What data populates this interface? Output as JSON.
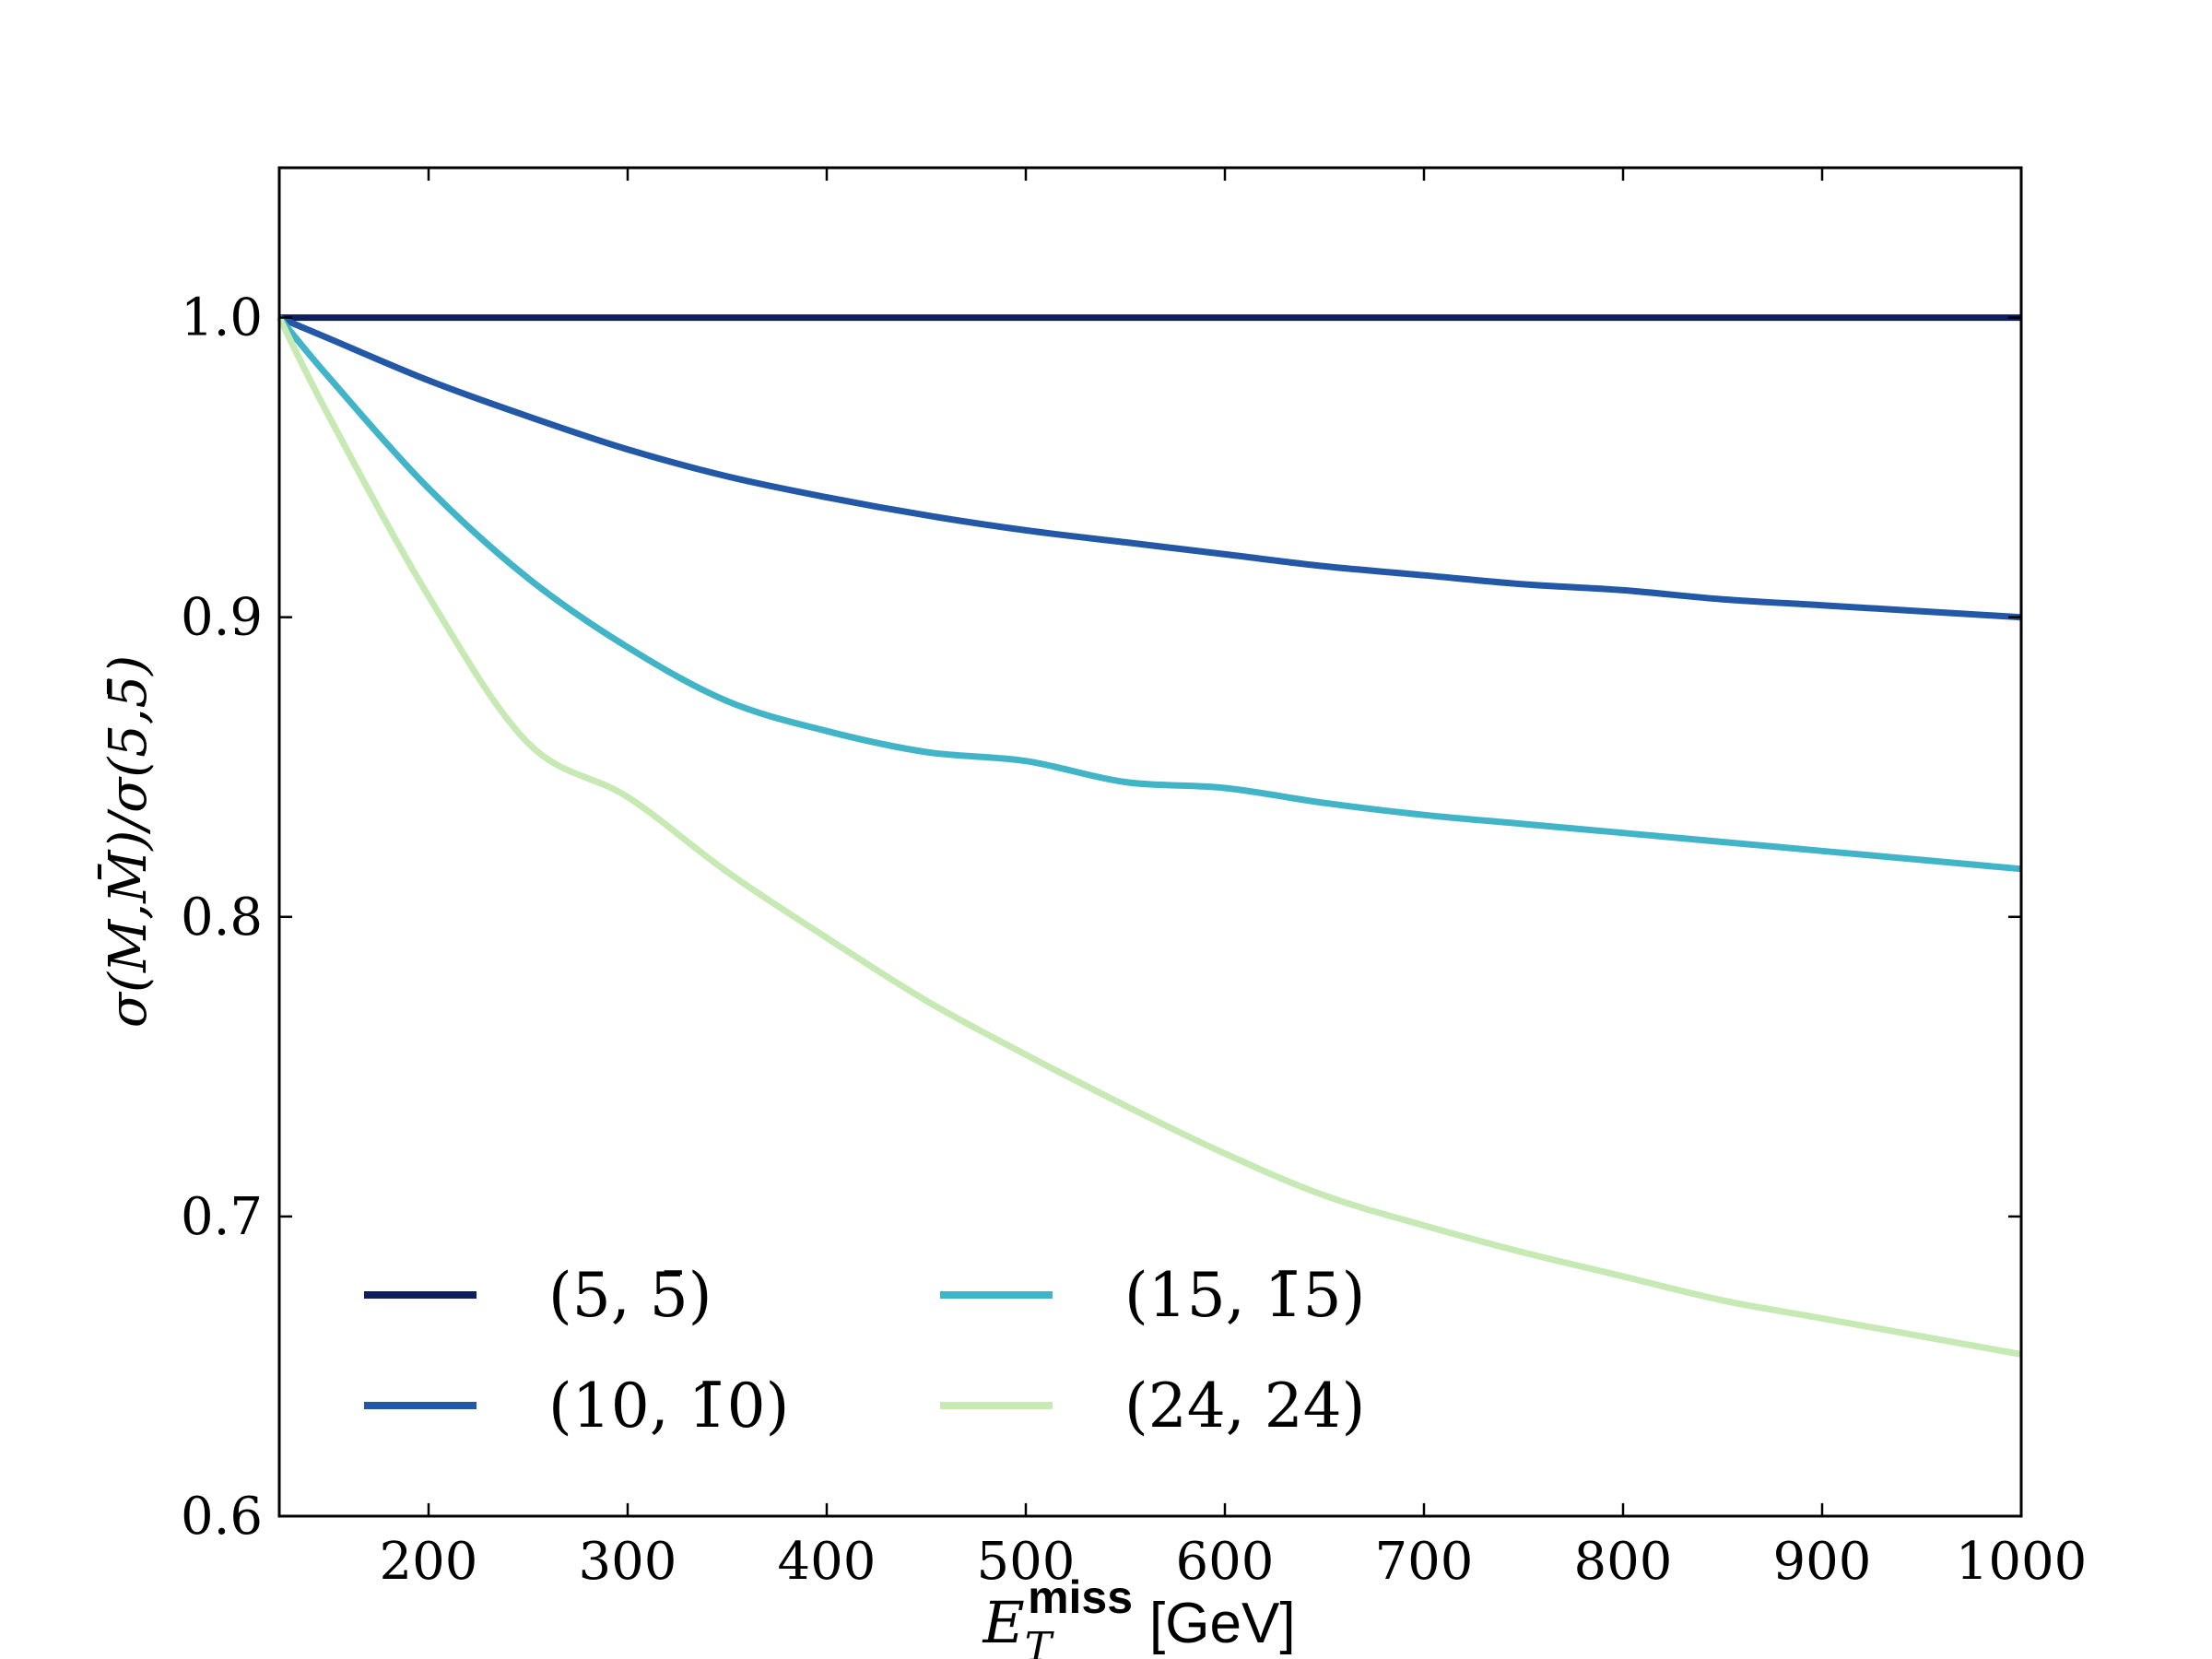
{
  "chart_data": {
    "type": "line",
    "title": "",
    "xlabel": {
      "main": "E",
      "sub": "T",
      "sup": "miss",
      "unit": "[GeV]"
    },
    "ylabel": "σ(M,M̄)/σ(5,5̄)",
    "xlim": [
      125,
      1000
    ],
    "ylim": [
      0.6,
      1.05
    ],
    "xticks": [
      200,
      300,
      400,
      500,
      600,
      700,
      800,
      900,
      1000
    ],
    "yticks": [
      0.6,
      0.7,
      0.8,
      0.9,
      1.0
    ],
    "ytick_labels": [
      "0.6",
      "0.7",
      "0.8",
      "0.9",
      "1.0"
    ],
    "grid": false,
    "legend_position": "bottom-left",
    "x": [
      125,
      150,
      200,
      250,
      300,
      350,
      400,
      450,
      500,
      550,
      600,
      650,
      700,
      750,
      800,
      850,
      900,
      950,
      1000
    ],
    "series": [
      {
        "name": "(5, 5̄)",
        "color": "#0d1f5c",
        "values": [
          1.0,
          1.0,
          1.0,
          1.0,
          1.0,
          1.0,
          1.0,
          1.0,
          1.0,
          1.0,
          1.0,
          1.0,
          1.0,
          1.0,
          1.0,
          1.0,
          1.0,
          1.0,
          1.0
        ]
      },
      {
        "name": "(10, 1̄0)",
        "color": "#2358a6",
        "values": [
          1.0,
          0.993,
          0.979,
          0.967,
          0.956,
          0.947,
          0.94,
          0.934,
          0.929,
          0.925,
          0.921,
          0.917,
          0.914,
          0.911,
          0.909,
          0.906,
          0.904,
          0.902,
          0.9
        ]
      },
      {
        "name": "(15, 1̄5)",
        "color": "#41b5c7",
        "values": [
          1.0,
          0.98,
          0.943,
          0.913,
          0.89,
          0.872,
          0.862,
          0.855,
          0.852,
          0.845,
          0.843,
          0.838,
          0.834,
          0.831,
          0.828,
          0.825,
          0.822,
          0.819,
          0.816
        ]
      },
      {
        "name": "(24, 24)",
        "color": "#c7e9b4",
        "values": [
          1.0,
          0.967,
          0.907,
          0.858,
          0.84,
          0.815,
          0.793,
          0.772,
          0.754,
          0.737,
          0.721,
          0.707,
          0.697,
          0.688,
          0.68,
          0.672,
          0.666,
          0.66,
          0.654
        ]
      }
    ]
  }
}
